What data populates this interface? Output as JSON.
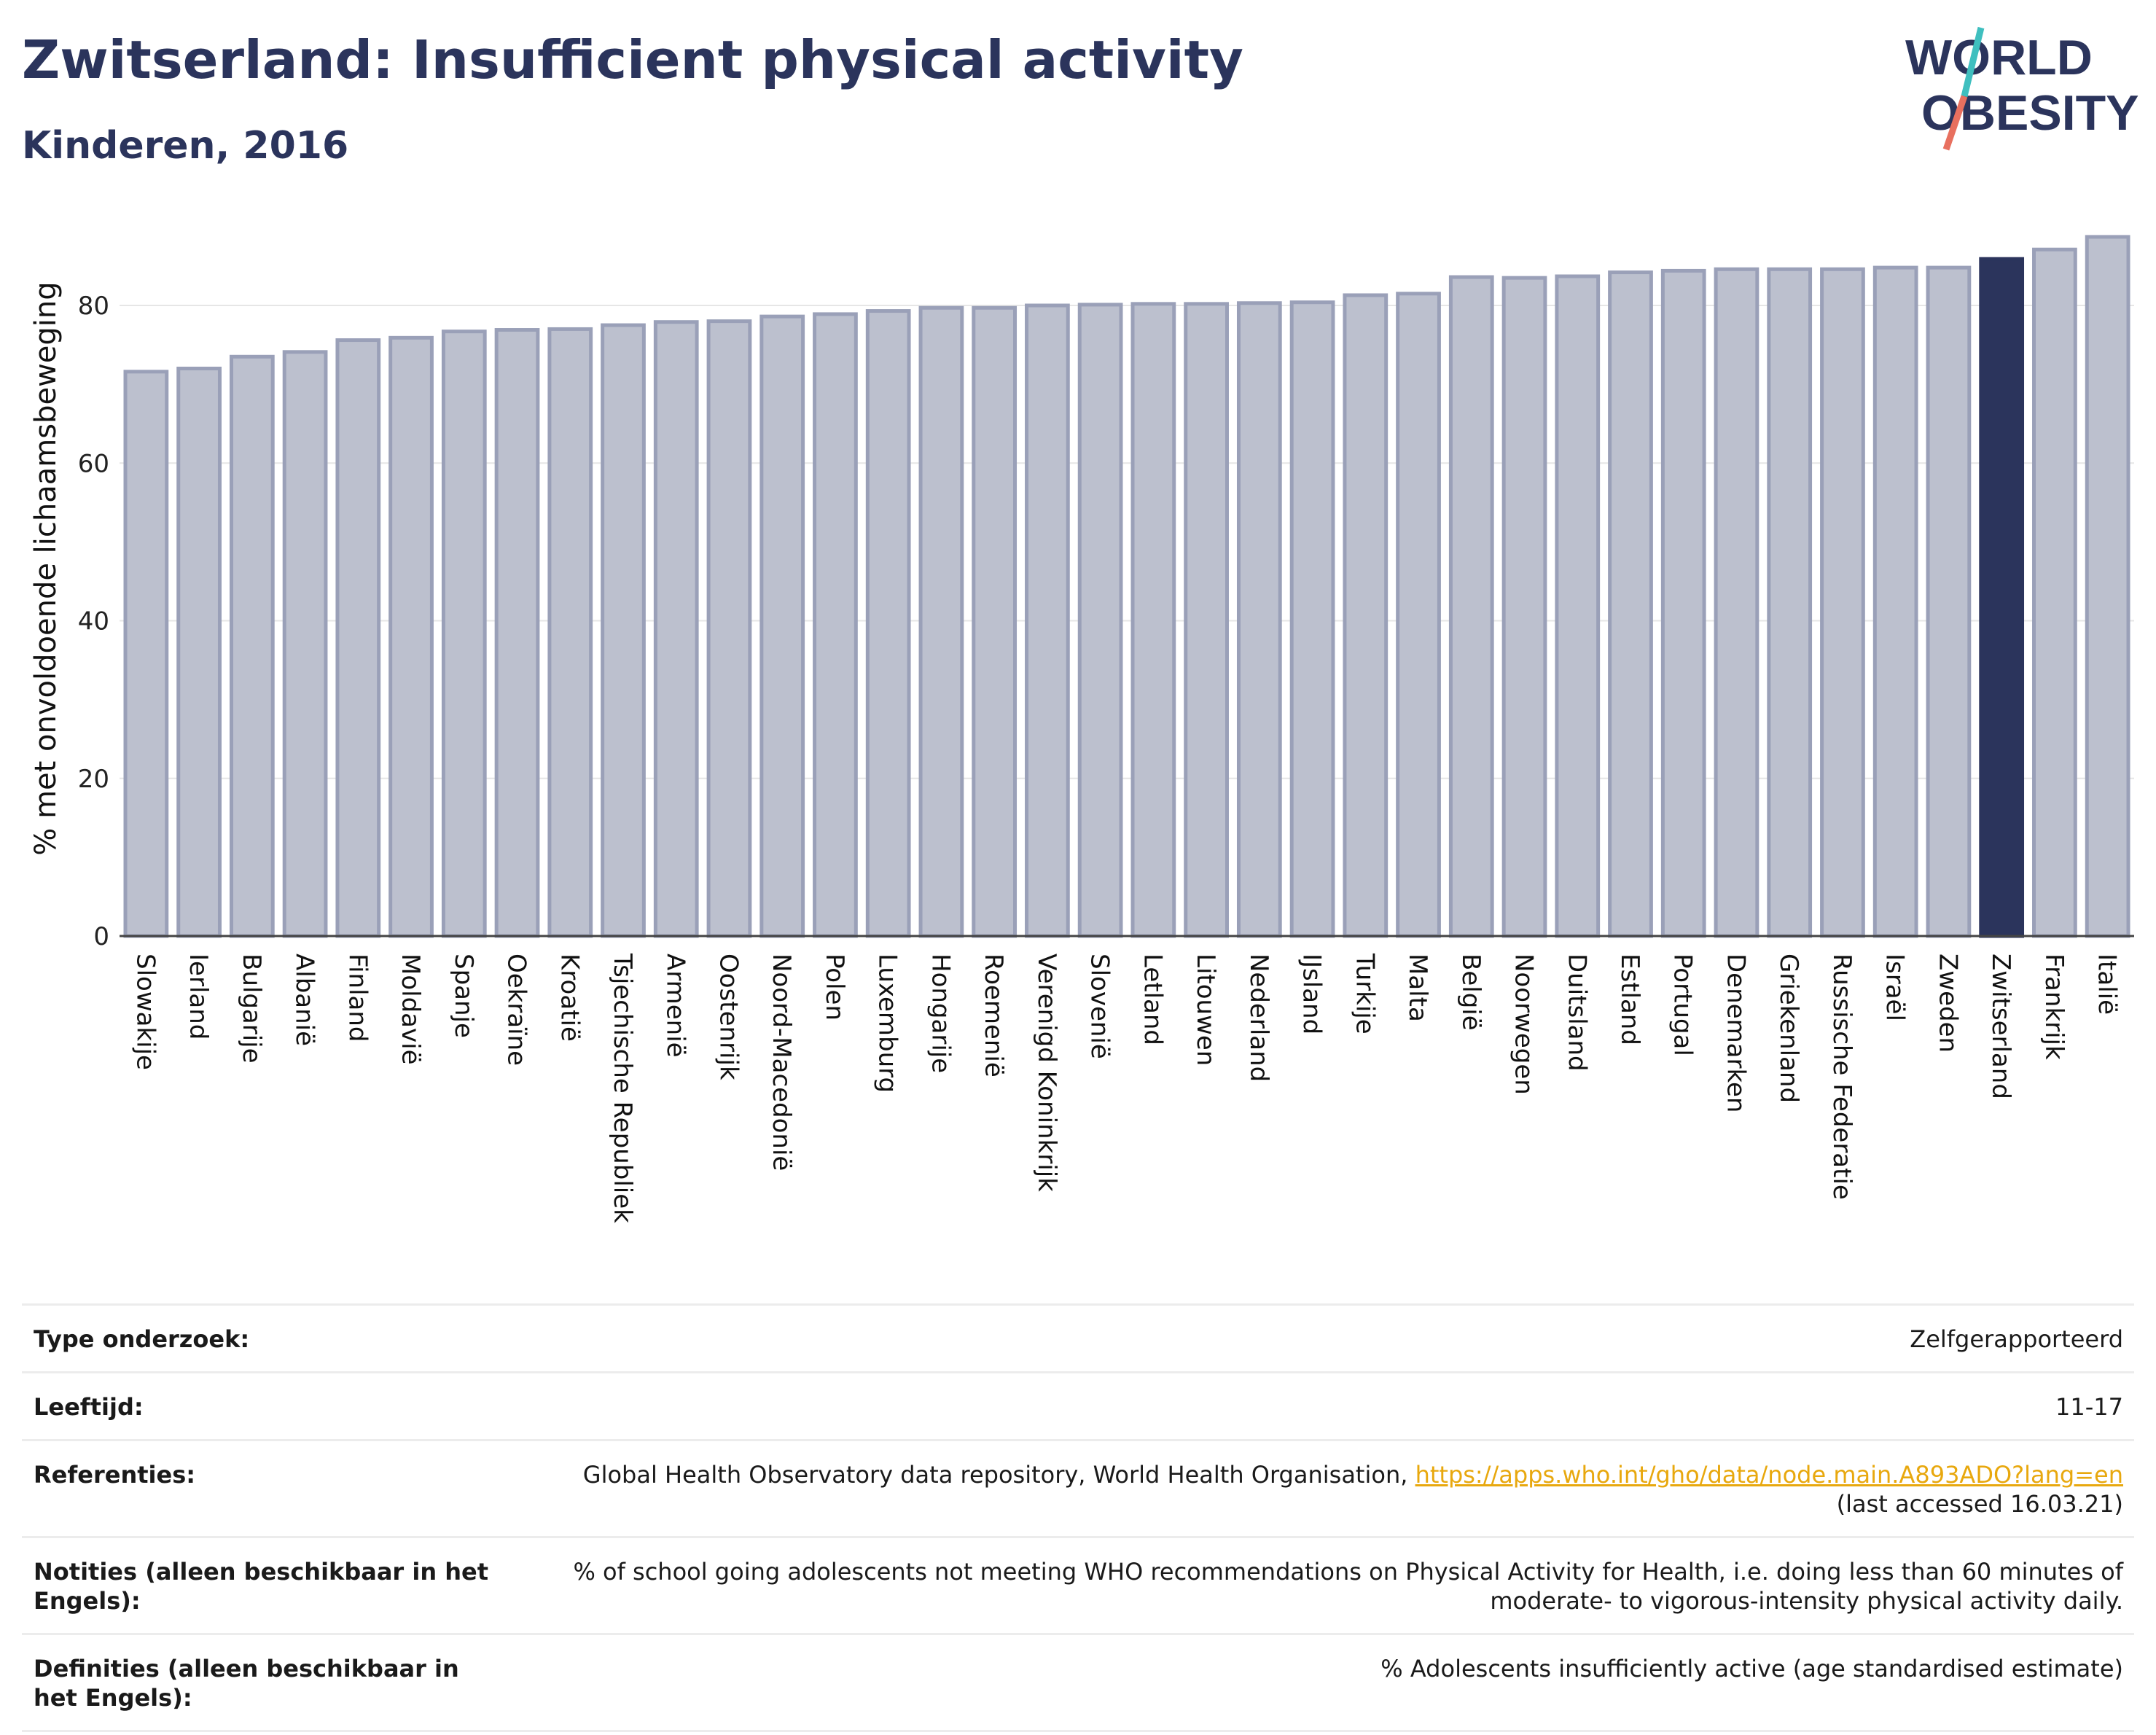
{
  "header": {
    "title": "Zwitserland: Insufficient physical activity",
    "subtitle": "Kinderen, 2016"
  },
  "logo": {
    "line1": "WORLD",
    "line2": "OBESITY"
  },
  "colors": {
    "bar": "#bcc0ce",
    "bar_border": "#9aa0b8",
    "highlight": "#2b345c",
    "title": "#2b345c",
    "link": "#e8a80e"
  },
  "chart_data": {
    "type": "bar",
    "ylabel": "% met onvoldoende lichaamsbeweging",
    "ylim": [
      0,
      90
    ],
    "yticks": [
      0,
      20,
      40,
      60,
      80
    ],
    "grid": true,
    "highlight": "Zwitserland",
    "categories": [
      "Slowakije",
      "Ierland",
      "Bulgarije",
      "Albanië",
      "Finland",
      "Moldavië",
      "Spanje",
      "Oekraïne",
      "Kroatië",
      "Tsjechische Republiek",
      "Armenië",
      "Oostenrijk",
      "Noord-Macedonië",
      "Polen",
      "Luxemburg",
      "Hongarije",
      "Roemenië",
      "Verenigd Koninkrijk",
      "Slovenië",
      "Letland",
      "Litouwen",
      "Nederland",
      "IJsland",
      "Turkije",
      "Malta",
      "België",
      "Noorwegen",
      "Duitsland",
      "Estland",
      "Portugal",
      "Denemarken",
      "Griekenland",
      "Russische Federatie",
      "Israël",
      "Zweden",
      "Zwitserland",
      "Frankrijk",
      "Italië"
    ],
    "values": [
      71.6,
      72.0,
      73.5,
      74.1,
      75.6,
      75.9,
      76.7,
      76.9,
      77.0,
      77.5,
      77.9,
      78.0,
      78.6,
      78.9,
      79.3,
      79.7,
      79.7,
      80.0,
      80.1,
      80.2,
      80.2,
      80.3,
      80.4,
      81.3,
      81.5,
      83.6,
      83.5,
      83.7,
      84.2,
      84.4,
      84.6,
      84.6,
      84.6,
      84.8,
      84.8,
      85.9,
      87.1,
      88.7
    ]
  },
  "meta": {
    "survey_type": {
      "label": "Type onderzoek:",
      "value": "Zelfgerapporteerd"
    },
    "age": {
      "label": "Leeftijd:",
      "value": "11-17"
    },
    "references": {
      "label": "Referenties:",
      "text": "Global Health Observatory data repository, World Health Organisation,",
      "link": "https://apps.who.int/gho/data/node.main.A893ADO?lang=en",
      "accessed": "(last accessed 16.03.21)"
    },
    "notes": {
      "label": "Notities (alleen beschikbaar in het Engels):",
      "line1": "% of school going adolescents not meeting WHO recommendations on Physical Activity for Health, i.e. doing less than 60 minutes of",
      "line2": "moderate- to vigorous-intensity physical activity daily."
    },
    "definitions": {
      "label": "Definities (alleen beschikbaar in het Engels):",
      "value": "% Adolescents insufficiently active (age standardised estimate)"
    }
  }
}
